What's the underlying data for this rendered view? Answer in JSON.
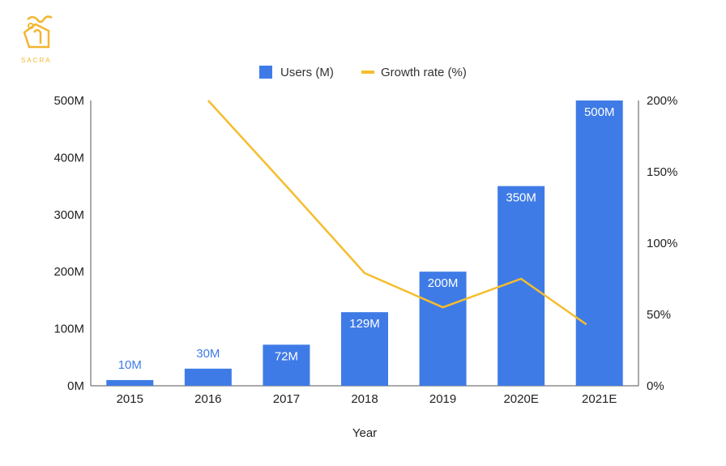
{
  "brand": {
    "logo_text": "SACRA",
    "accent": "#f2b630"
  },
  "chart_data": {
    "type": "bar",
    "categories": [
      "2015",
      "2016",
      "2017",
      "2018",
      "2019",
      "2020E",
      "2021E"
    ],
    "series": [
      {
        "name": "Users (M)",
        "type": "bar",
        "axis": "left",
        "color": "#3f7be6",
        "values": [
          10,
          30,
          72,
          129,
          200,
          350,
          500
        ],
        "labels": [
          "10M",
          "30M",
          "72M",
          "129M",
          "200M",
          "350M",
          "500M"
        ]
      },
      {
        "name": "Growth rate (%)",
        "type": "line",
        "axis": "right",
        "color": "#f5bd2e",
        "values": [
          null,
          200,
          140,
          79,
          55,
          75,
          43
        ]
      }
    ],
    "xlabel": "Year",
    "ylabel": "",
    "ylim": [
      0,
      500
    ],
    "y_ticks": [
      "0M",
      "100M",
      "200M",
      "300M",
      "400M",
      "500M"
    ],
    "y2lim": [
      0,
      200
    ],
    "y2_ticks": [
      "0%",
      "50%",
      "100%",
      "150%",
      "200%"
    ],
    "legend_position": "top-center",
    "grid": false
  }
}
